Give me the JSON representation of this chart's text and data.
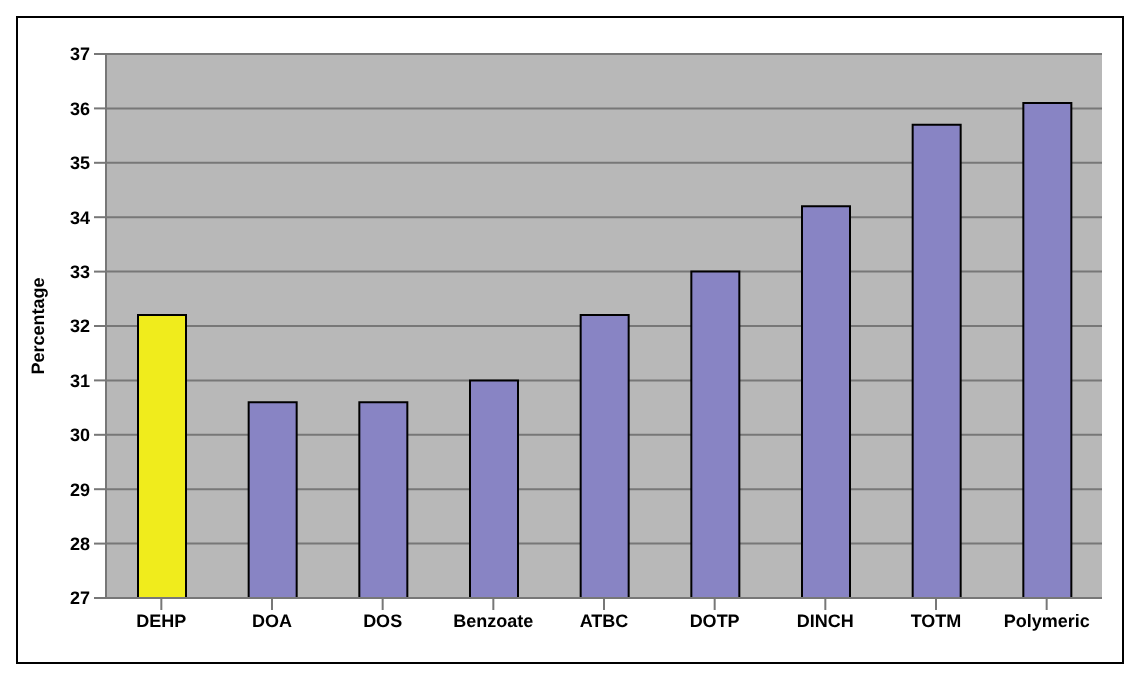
{
  "chart_data": {
    "type": "bar",
    "ylabel": "Percentage",
    "categories": [
      "DEHP",
      "DOA",
      "DOS",
      "Benzoate",
      "ATBC",
      "DOTP",
      "DINCH",
      "TOTM",
      "Polymeric"
    ],
    "values": [
      32.2,
      30.6,
      30.6,
      31.0,
      32.2,
      33.0,
      34.2,
      35.7,
      36.1
    ],
    "colors": [
      "#f0ec1c",
      "#8884c4",
      "#8884c4",
      "#8884c4",
      "#8884c4",
      "#8884c4",
      "#8884c4",
      "#8884c4",
      "#8884c4"
    ],
    "ylim": [
      27,
      37
    ],
    "yticks": [
      27,
      28,
      29,
      30,
      31,
      32,
      33,
      34,
      35,
      36,
      37
    ],
    "grid": "y"
  }
}
